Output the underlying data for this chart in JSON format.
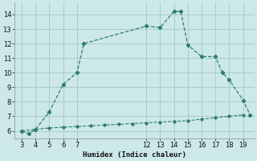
{
  "main_x": [
    3,
    3.5,
    4,
    5,
    6,
    7,
    7.5,
    12,
    13,
    14,
    14.5,
    15,
    16,
    17,
    17.5,
    18,
    19,
    19.5
  ],
  "main_y": [
    6.0,
    5.8,
    6.1,
    7.3,
    9.2,
    10.0,
    12.0,
    13.2,
    13.1,
    14.2,
    14.2,
    11.9,
    11.1,
    11.1,
    10.0,
    9.5,
    8.1,
    7.1
  ],
  "base_x": [
    3,
    4,
    5,
    6,
    7,
    8,
    9,
    10,
    11,
    12,
    13,
    14,
    15,
    16,
    17,
    18,
    19
  ],
  "base_y": [
    6.0,
    6.1,
    6.2,
    6.25,
    6.3,
    6.35,
    6.4,
    6.45,
    6.5,
    6.55,
    6.6,
    6.65,
    6.7,
    6.8,
    6.9,
    7.0,
    7.1
  ],
  "line_color": "#2e7d72",
  "bg_color": "#cce8e8",
  "grid_color": "#aacccc",
  "xlabel": "Humidex (Indice chaleur)",
  "xlim": [
    2.5,
    19.8
  ],
  "ylim": [
    5.5,
    14.8
  ],
  "xticks": [
    3,
    4,
    5,
    6,
    7,
    12,
    13,
    14,
    15,
    16,
    17,
    18,
    19
  ],
  "yticks": [
    6,
    7,
    8,
    9,
    10,
    11,
    12,
    13,
    14
  ]
}
